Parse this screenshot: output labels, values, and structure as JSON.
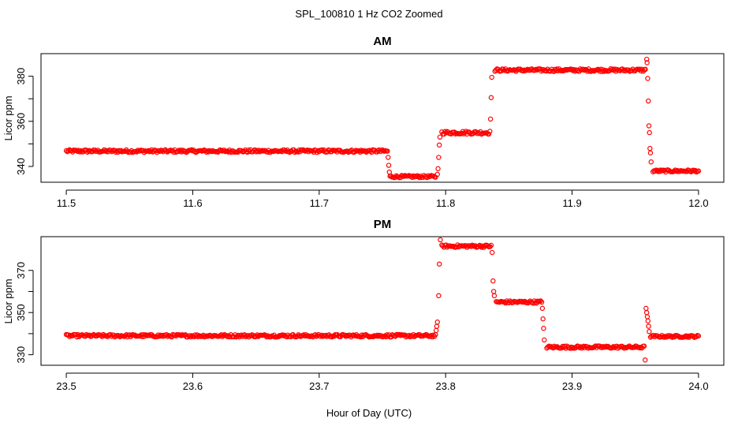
{
  "figure_title": "SPL_100810  1 Hz CO2 Zoomed",
  "x_axis_label": "Hour of Day (UTC)",
  "marker_color": "#ff0000",
  "chart_data": [
    {
      "type": "scatter",
      "title": "AM",
      "xlabel": "",
      "ylabel": "Licor ppm",
      "xlim": [
        11.48,
        12.02
      ],
      "ylim": [
        333,
        390
      ],
      "xticks": [
        11.5,
        11.6,
        11.7,
        11.8,
        11.9,
        12.0
      ],
      "xtick_labels": [
        "11.5",
        "11.6",
        "11.7",
        "11.8",
        "11.9",
        "12.0"
      ],
      "yticks": [
        340,
        350,
        360,
        370,
        380
      ],
      "ytick_labels": [
        "340",
        "",
        "360",
        "",
        "380"
      ],
      "grid": false,
      "series": [
        {
          "marker": "open-circle",
          "segments": [
            {
              "x_start": 11.5,
              "x_end": 11.754,
              "y_level": 346.8,
              "noise": 0.6
            },
            {
              "x_start": 11.756,
              "x_end": 11.792,
              "y_level": 335.5,
              "noise": 0.5
            },
            {
              "x_start": 11.797,
              "x_end": 11.835,
              "y_level": 355.0,
              "noise": 0.7
            },
            {
              "x_start": 11.839,
              "x_end": 11.958,
              "y_level": 382.7,
              "noise": 0.6
            },
            {
              "x_start": 11.964,
              "x_end": 12.0,
              "y_level": 338.0,
              "noise": 0.5
            }
          ],
          "transitions": [
            {
              "x": 11.7545,
              "y": 344
            },
            {
              "x": 11.755,
              "y": 340.5
            },
            {
              "x": 11.7555,
              "y": 337.5
            },
            {
              "x": 11.7935,
              "y": 336.5
            },
            {
              "x": 11.794,
              "y": 339
            },
            {
              "x": 11.7945,
              "y": 344
            },
            {
              "x": 11.795,
              "y": 349.5
            },
            {
              "x": 11.7955,
              "y": 353
            },
            {
              "x": 11.8355,
              "y": 361
            },
            {
              "x": 11.836,
              "y": 370.5
            },
            {
              "x": 11.8365,
              "y": 379.5
            },
            {
              "x": 11.959,
              "y": 387.5
            },
            {
              "x": 11.9593,
              "y": 386
            },
            {
              "x": 11.9598,
              "y": 379
            },
            {
              "x": 11.9603,
              "y": 369
            },
            {
              "x": 11.9608,
              "y": 358
            },
            {
              "x": 11.9612,
              "y": 355
            },
            {
              "x": 11.9616,
              "y": 348
            },
            {
              "x": 11.962,
              "y": 346
            },
            {
              "x": 11.9625,
              "y": 342
            }
          ]
        }
      ]
    },
    {
      "type": "scatter",
      "title": "PM",
      "xlabel": "Hour of Day (UTC)",
      "ylabel": "Licor ppm",
      "xlim": [
        23.48,
        24.02
      ],
      "ylim": [
        325,
        386
      ],
      "xticks": [
        23.5,
        23.6,
        23.7,
        23.8,
        23.9,
        24.0
      ],
      "xtick_labels": [
        "23.5",
        "23.6",
        "23.7",
        "23.8",
        "23.9",
        "24.0"
      ],
      "yticks": [
        330,
        340,
        350,
        360,
        370
      ],
      "ytick_labels": [
        "330",
        "",
        "350",
        "",
        "370"
      ],
      "grid": false,
      "series": [
        {
          "marker": "open-circle",
          "segments": [
            {
              "x_start": 23.5,
              "x_end": 23.792,
              "y_level": 339.0,
              "noise": 0.6
            },
            {
              "x_start": 23.797,
              "x_end": 23.836,
              "y_level": 381.5,
              "noise": 0.6
            },
            {
              "x_start": 23.84,
              "x_end": 23.876,
              "y_level": 355.0,
              "noise": 0.6
            },
            {
              "x_start": 23.88,
              "x_end": 23.957,
              "y_level": 333.6,
              "noise": 0.6
            },
            {
              "x_start": 23.962,
              "x_end": 24.0,
              "y_level": 338.7,
              "noise": 0.5
            }
          ],
          "transitions": [
            {
              "x": 23.7925,
              "y": 341.5
            },
            {
              "x": 23.793,
              "y": 343.5
            },
            {
              "x": 23.7935,
              "y": 345.5
            },
            {
              "x": 23.7945,
              "y": 358
            },
            {
              "x": 23.795,
              "y": 373
            },
            {
              "x": 23.7958,
              "y": 384.5
            },
            {
              "x": 23.8368,
              "y": 378.5
            },
            {
              "x": 23.8375,
              "y": 365
            },
            {
              "x": 23.838,
              "y": 360
            },
            {
              "x": 23.8385,
              "y": 358
            },
            {
              "x": 23.8765,
              "y": 352
            },
            {
              "x": 23.877,
              "y": 347
            },
            {
              "x": 23.8775,
              "y": 342.5
            },
            {
              "x": 23.878,
              "y": 337
            },
            {
              "x": 23.9578,
              "y": 327.5
            },
            {
              "x": 23.9585,
              "y": 352
            },
            {
              "x": 23.959,
              "y": 350
            },
            {
              "x": 23.9595,
              "y": 348
            },
            {
              "x": 23.96,
              "y": 346
            },
            {
              "x": 23.9605,
              "y": 343.5
            },
            {
              "x": 23.961,
              "y": 341
            }
          ]
        }
      ]
    }
  ]
}
